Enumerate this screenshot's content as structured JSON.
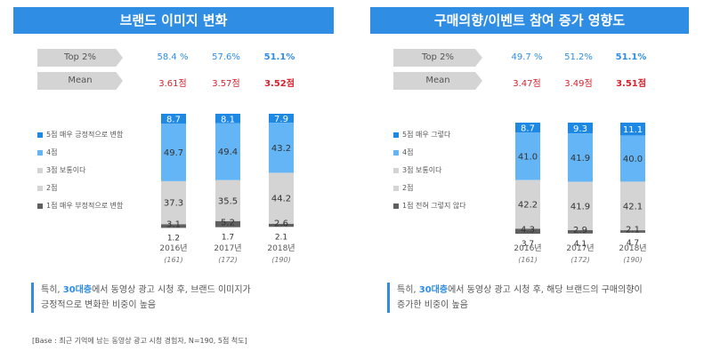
{
  "footnote": "[Base : 최근 기억에 남는 동영상 광고 시청 경험자, N=190, 5점 척도]",
  "colors": {
    "top": "#1e88e5",
    "c4": "#64b5f6",
    "c3": "#d4d4d4",
    "c2": "#d4d4d4",
    "bottom": "#5f5f5f",
    "accent": "#2f8de4",
    "red": "#d8212d"
  },
  "panels": [
    {
      "title": "브랜드 이미지 변화",
      "top2_label": "Top 2%",
      "mean_label": "Mean",
      "top2": [
        "58.4 %",
        "57.6%",
        "51.1%"
      ],
      "mean": [
        "3.61점",
        "3.57점",
        "3.52점"
      ],
      "legend": [
        "5점 매우 긍정적으로 변함",
        "4점",
        "3점 보통이다",
        "2점",
        "1점 매우 부정적으로 변함"
      ],
      "note_prefix": "특히, ",
      "note_highlight": "30대층",
      "note_rest": "에서 동영상 광고 시청 후, 브랜드 이미지가",
      "note_line2": "긍정적으로 변화한 비중이 높음"
    },
    {
      "title": "구매의향/이벤트 참여 증가 영향도",
      "top2_label": "Top 2%",
      "mean_label": "Mean",
      "top2": [
        "49.7 %",
        "51.2%",
        "51.1%"
      ],
      "mean": [
        "3.47점",
        "3.49점",
        "3.51점"
      ],
      "legend": [
        "5점 매우 그렇다",
        "4점",
        "3점 보통이다",
        "2점",
        "1점 전혀 그렇지 않다"
      ],
      "note_prefix": "특히, ",
      "note_highlight": "30대층",
      "note_rest": "에서 동영상 광고 시청 후, 해당 브랜드의 구매의향이",
      "note_line2": "증가한 비중이 높음"
    }
  ],
  "chart_data": [
    {
      "type": "bar",
      "categories": [
        "2016년",
        "2017년",
        "2018년"
      ],
      "bases": [
        "(161)",
        "(172)",
        "(190)"
      ],
      "series": [
        {
          "name": "5점 매우 긍정적으로 변함",
          "values": [
            8.7,
            8.1,
            7.9
          ]
        },
        {
          "name": "4점",
          "values": [
            49.7,
            49.4,
            43.2
          ]
        },
        {
          "name": "3점 보통이다",
          "values": [
            0,
            0,
            0
          ]
        },
        {
          "name": "2점",
          "values": [
            37.3,
            35.5,
            44.2
          ]
        },
        {
          "name": "1점 매우 부정적으로 변함",
          "values": [
            3.1,
            5.2,
            2.6
          ]
        }
      ],
      "below_labels": [
        1.2,
        1.7,
        2.1
      ]
    },
    {
      "type": "bar",
      "categories": [
        "2016년",
        "2017년",
        "2018년"
      ],
      "bases": [
        "(161)",
        "(172)",
        "(190)"
      ],
      "series": [
        {
          "name": "5점 매우 그렇다",
          "values": [
            8.7,
            9.3,
            11.1
          ]
        },
        {
          "name": "4점",
          "values": [
            41.0,
            41.9,
            40.0
          ]
        },
        {
          "name": "3점 보통이다",
          "values": [
            0,
            0,
            0
          ]
        },
        {
          "name": "2점",
          "values": [
            42.2,
            41.9,
            42.1
          ]
        },
        {
          "name": "1점 전혀 그렇지 않다",
          "values": [
            4.3,
            2.9,
            2.1
          ]
        }
      ],
      "below_labels": [
        3.7,
        4.1,
        4.7
      ]
    }
  ]
}
